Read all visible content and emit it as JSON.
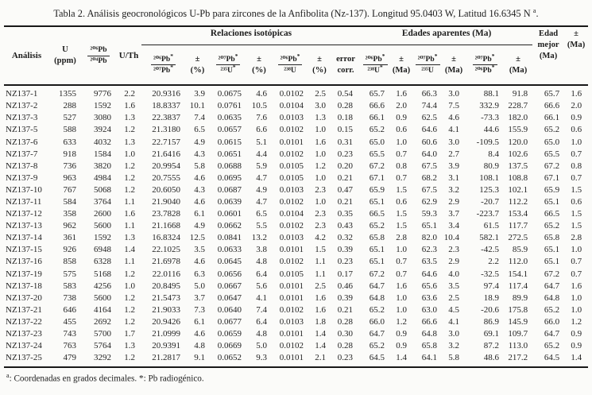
{
  "title": {
    "main": "Tabla 2. Análisis geocronológicos U-Pb para zircones de la Anfibolita (Nz-137). Longitud 95.0403 W, Latitud 16.6345 N ",
    "sup": "a",
    "end": "."
  },
  "groups": {
    "relaciones": "Relaciones isotópicas",
    "edades": "Edades aparentes (Ma)"
  },
  "header": {
    "analisis": "Análisis",
    "u_l1": "U",
    "u_l2": "(ppm)",
    "pb_num": "²⁰⁶Pb",
    "pb_den": "²⁰⁴Pb",
    "u_th": "U/Th",
    "edad_l1": "Edad",
    "edad_l2": "mejor",
    "edad_l3": "(Ma)",
    "pm_l1": "±",
    "pm_l2": "(Ma)"
  },
  "sub_headers": [
    {
      "id": "ratio-206pb-207pb",
      "kind": "frac",
      "num": "²⁰⁶Pb*",
      "den": "²⁰⁷Pb*"
    },
    {
      "id": "pm-pct-1",
      "kind": "stack",
      "l1": "±",
      "l2": "(%)"
    },
    {
      "id": "ratio-207pb-235u",
      "kind": "frac",
      "num": "²⁰⁷Pb*",
      "den": "²³⁵U*"
    },
    {
      "id": "pm-pct-2",
      "kind": "stack",
      "l1": "±",
      "l2": "(%)"
    },
    {
      "id": "ratio-206pb-238u",
      "kind": "frac",
      "num": "²⁰⁶Pb*",
      "den": "²³⁸U"
    },
    {
      "id": "pm-pct-3",
      "kind": "stack",
      "l1": "±",
      "l2": "(%)"
    },
    {
      "id": "error-corr",
      "kind": "stack",
      "l1": "error",
      "l2": "corr."
    },
    {
      "id": "age-206pb-238u",
      "kind": "frac",
      "num": "²⁰⁶Pb*",
      "den": "²³⁸U*"
    },
    {
      "id": "pm-ma-1",
      "kind": "stack",
      "l1": "±",
      "l2": "(Ma)"
    },
    {
      "id": "age-207pb-235u",
      "kind": "frac",
      "num": "²⁰⁷Pb*",
      "den": "²³⁵U"
    },
    {
      "id": "pm-ma-2",
      "kind": "stack",
      "l1": "±",
      "l2": "(Ma)"
    },
    {
      "id": "age-207pb-206pb",
      "kind": "frac",
      "num": "²⁰⁷Pb*",
      "den": "²⁰⁶Pb*"
    },
    {
      "id": "pm-ma-3",
      "kind": "stack",
      "l1": "±",
      "l2": "(Ma)"
    }
  ],
  "rows": [
    [
      "NZ137-1",
      "1355",
      "9776",
      "2.2",
      "20.9316",
      "3.9",
      "0.0675",
      "4.6",
      "0.0102",
      "2.5",
      "0.54",
      "65.7",
      "1.6",
      "66.3",
      "3.0",
      "88.1",
      "91.8",
      "65.7",
      "1.6"
    ],
    [
      "NZ137-2",
      "288",
      "1592",
      "1.6",
      "18.8337",
      "10.1",
      "0.0761",
      "10.5",
      "0.0104",
      "3.0",
      "0.28",
      "66.6",
      "2.0",
      "74.4",
      "7.5",
      "332.9",
      "228.7",
      "66.6",
      "2.0"
    ],
    [
      "NZ137-3",
      "527",
      "3080",
      "1.3",
      "22.3837",
      "7.4",
      "0.0635",
      "7.6",
      "0.0103",
      "1.3",
      "0.18",
      "66.1",
      "0.9",
      "62.5",
      "4.6",
      "-73.3",
      "182.0",
      "66.1",
      "0.9"
    ],
    [
      "NZ137-5",
      "588",
      "3924",
      "1.2",
      "21.3180",
      "6.5",
      "0.0657",
      "6.6",
      "0.0102",
      "1.0",
      "0.15",
      "65.2",
      "0.6",
      "64.6",
      "4.1",
      "44.6",
      "155.9",
      "65.2",
      "0.6"
    ],
    [
      "NZ137-6",
      "633",
      "4032",
      "1.3",
      "22.7157",
      "4.9",
      "0.0615",
      "5.1",
      "0.0101",
      "1.6",
      "0.31",
      "65.0",
      "1.0",
      "60.6",
      "3.0",
      "-109.5",
      "120.0",
      "65.0",
      "1.0"
    ],
    [
      "NZ137-7",
      "918",
      "1584",
      "1.0",
      "21.6416",
      "4.3",
      "0.0651",
      "4.4",
      "0.0102",
      "1.0",
      "0.23",
      "65.5",
      "0.7",
      "64.0",
      "2.7",
      "8.4",
      "102.6",
      "65.5",
      "0.7"
    ],
    [
      "NZ137-8",
      "736",
      "3820",
      "1.2",
      "20.9954",
      "5.8",
      "0.0688",
      "5.9",
      "0.0105",
      "1.2",
      "0.20",
      "67.2",
      "0.8",
      "67.5",
      "3.9",
      "80.9",
      "137.5",
      "67.2",
      "0.8"
    ],
    [
      "NZ137-9",
      "963",
      "4984",
      "1.2",
      "20.7555",
      "4.6",
      "0.0695",
      "4.7",
      "0.0105",
      "1.0",
      "0.21",
      "67.1",
      "0.7",
      "68.2",
      "3.1",
      "108.1",
      "108.8",
      "67.1",
      "0.7"
    ],
    [
      "NZ137-10",
      "767",
      "5068",
      "1.2",
      "20.6050",
      "4.3",
      "0.0687",
      "4.9",
      "0.0103",
      "2.3",
      "0.47",
      "65.9",
      "1.5",
      "67.5",
      "3.2",
      "125.3",
      "102.1",
      "65.9",
      "1.5"
    ],
    [
      "NZ137-11",
      "584",
      "3764",
      "1.1",
      "21.9040",
      "4.6",
      "0.0639",
      "4.7",
      "0.0102",
      "1.0",
      "0.21",
      "65.1",
      "0.6",
      "62.9",
      "2.9",
      "-20.7",
      "112.2",
      "65.1",
      "0.6"
    ],
    [
      "NZ137-12",
      "358",
      "2600",
      "1.6",
      "23.7828",
      "6.1",
      "0.0601",
      "6.5",
      "0.0104",
      "2.3",
      "0.35",
      "66.5",
      "1.5",
      "59.3",
      "3.7",
      "-223.7",
      "153.4",
      "66.5",
      "1.5"
    ],
    [
      "NZ137-13",
      "962",
      "5600",
      "1.1",
      "21.1668",
      "4.9",
      "0.0662",
      "5.5",
      "0.0102",
      "2.3",
      "0.43",
      "65.2",
      "1.5",
      "65.1",
      "3.4",
      "61.5",
      "117.7",
      "65.2",
      "1.5"
    ],
    [
      "NZ137-14",
      "361",
      "1592",
      "1.3",
      "16.8324",
      "12.5",
      "0.0841",
      "13.2",
      "0.0103",
      "4.2",
      "0.32",
      "65.8",
      "2.8",
      "82.0",
      "10.4",
      "582.1",
      "272.5",
      "65.8",
      "2.8"
    ],
    [
      "NZ137-15",
      "926",
      "6948",
      "1.4",
      "22.1025",
      "3.5",
      "0.0633",
      "3.8",
      "0.0101",
      "1.5",
      "0.39",
      "65.1",
      "1.0",
      "62.3",
      "2.3",
      "-42.5",
      "85.9",
      "65.1",
      "1.0"
    ],
    [
      "NZ137-16",
      "858",
      "6328",
      "1.1",
      "21.6978",
      "4.6",
      "0.0645",
      "4.8",
      "0.0102",
      "1.1",
      "0.23",
      "65.1",
      "0.7",
      "63.5",
      "2.9",
      "2.2",
      "112.0",
      "65.1",
      "0.7"
    ],
    [
      "NZ137-19",
      "575",
      "5168",
      "1.2",
      "22.0116",
      "6.3",
      "0.0656",
      "6.4",
      "0.0105",
      "1.1",
      "0.17",
      "67.2",
      "0.7",
      "64.6",
      "4.0",
      "-32.5",
      "154.1",
      "67.2",
      "0.7"
    ],
    [
      "NZ137-18",
      "583",
      "4256",
      "1.0",
      "20.8495",
      "5.0",
      "0.0667",
      "5.6",
      "0.0101",
      "2.5",
      "0.46",
      "64.7",
      "1.6",
      "65.6",
      "3.5",
      "97.4",
      "117.4",
      "64.7",
      "1.6"
    ],
    [
      "NZ137-20",
      "738",
      "5600",
      "1.2",
      "21.5473",
      "3.7",
      "0.0647",
      "4.1",
      "0.0101",
      "1.6",
      "0.39",
      "64.8",
      "1.0",
      "63.6",
      "2.5",
      "18.9",
      "89.9",
      "64.8",
      "1.0"
    ],
    [
      "NZ137-21",
      "646",
      "4164",
      "1.2",
      "21.9033",
      "7.3",
      "0.0640",
      "7.4",
      "0.0102",
      "1.6",
      "0.21",
      "65.2",
      "1.0",
      "63.0",
      "4.5",
      "-20.6",
      "175.8",
      "65.2",
      "1.0"
    ],
    [
      "NZ137-22",
      "455",
      "2692",
      "1.2",
      "20.9426",
      "6.1",
      "0.0677",
      "6.4",
      "0.0103",
      "1.8",
      "0.28",
      "66.0",
      "1.2",
      "66.6",
      "4.1",
      "86.9",
      "145.9",
      "66.0",
      "1.2"
    ],
    [
      "NZ137-23",
      "743",
      "5700",
      "1.7",
      "21.0999",
      "4.6",
      "0.0659",
      "4.8",
      "0.0101",
      "1.4",
      "0.30",
      "64.7",
      "0.9",
      "64.8",
      "3.0",
      "69.1",
      "109.7",
      "64.7",
      "0.9"
    ],
    [
      "NZ137-24",
      "763",
      "5764",
      "1.3",
      "20.9391",
      "4.8",
      "0.0669",
      "5.0",
      "0.0102",
      "1.4",
      "0.28",
      "65.2",
      "0.9",
      "65.8",
      "3.2",
      "87.2",
      "113.0",
      "65.2",
      "0.9"
    ],
    [
      "NZ137-25",
      "479",
      "3292",
      "1.2",
      "21.2817",
      "9.1",
      "0.0652",
      "9.3",
      "0.0101",
      "2.1",
      "0.23",
      "64.5",
      "1.4",
      "64.1",
      "5.8",
      "48.6",
      "217.2",
      "64.5",
      "1.4"
    ]
  ],
  "footnote": {
    "sup": "a",
    "text": ": Coordenadas en grados decimales. *: Pb radiogénico."
  }
}
